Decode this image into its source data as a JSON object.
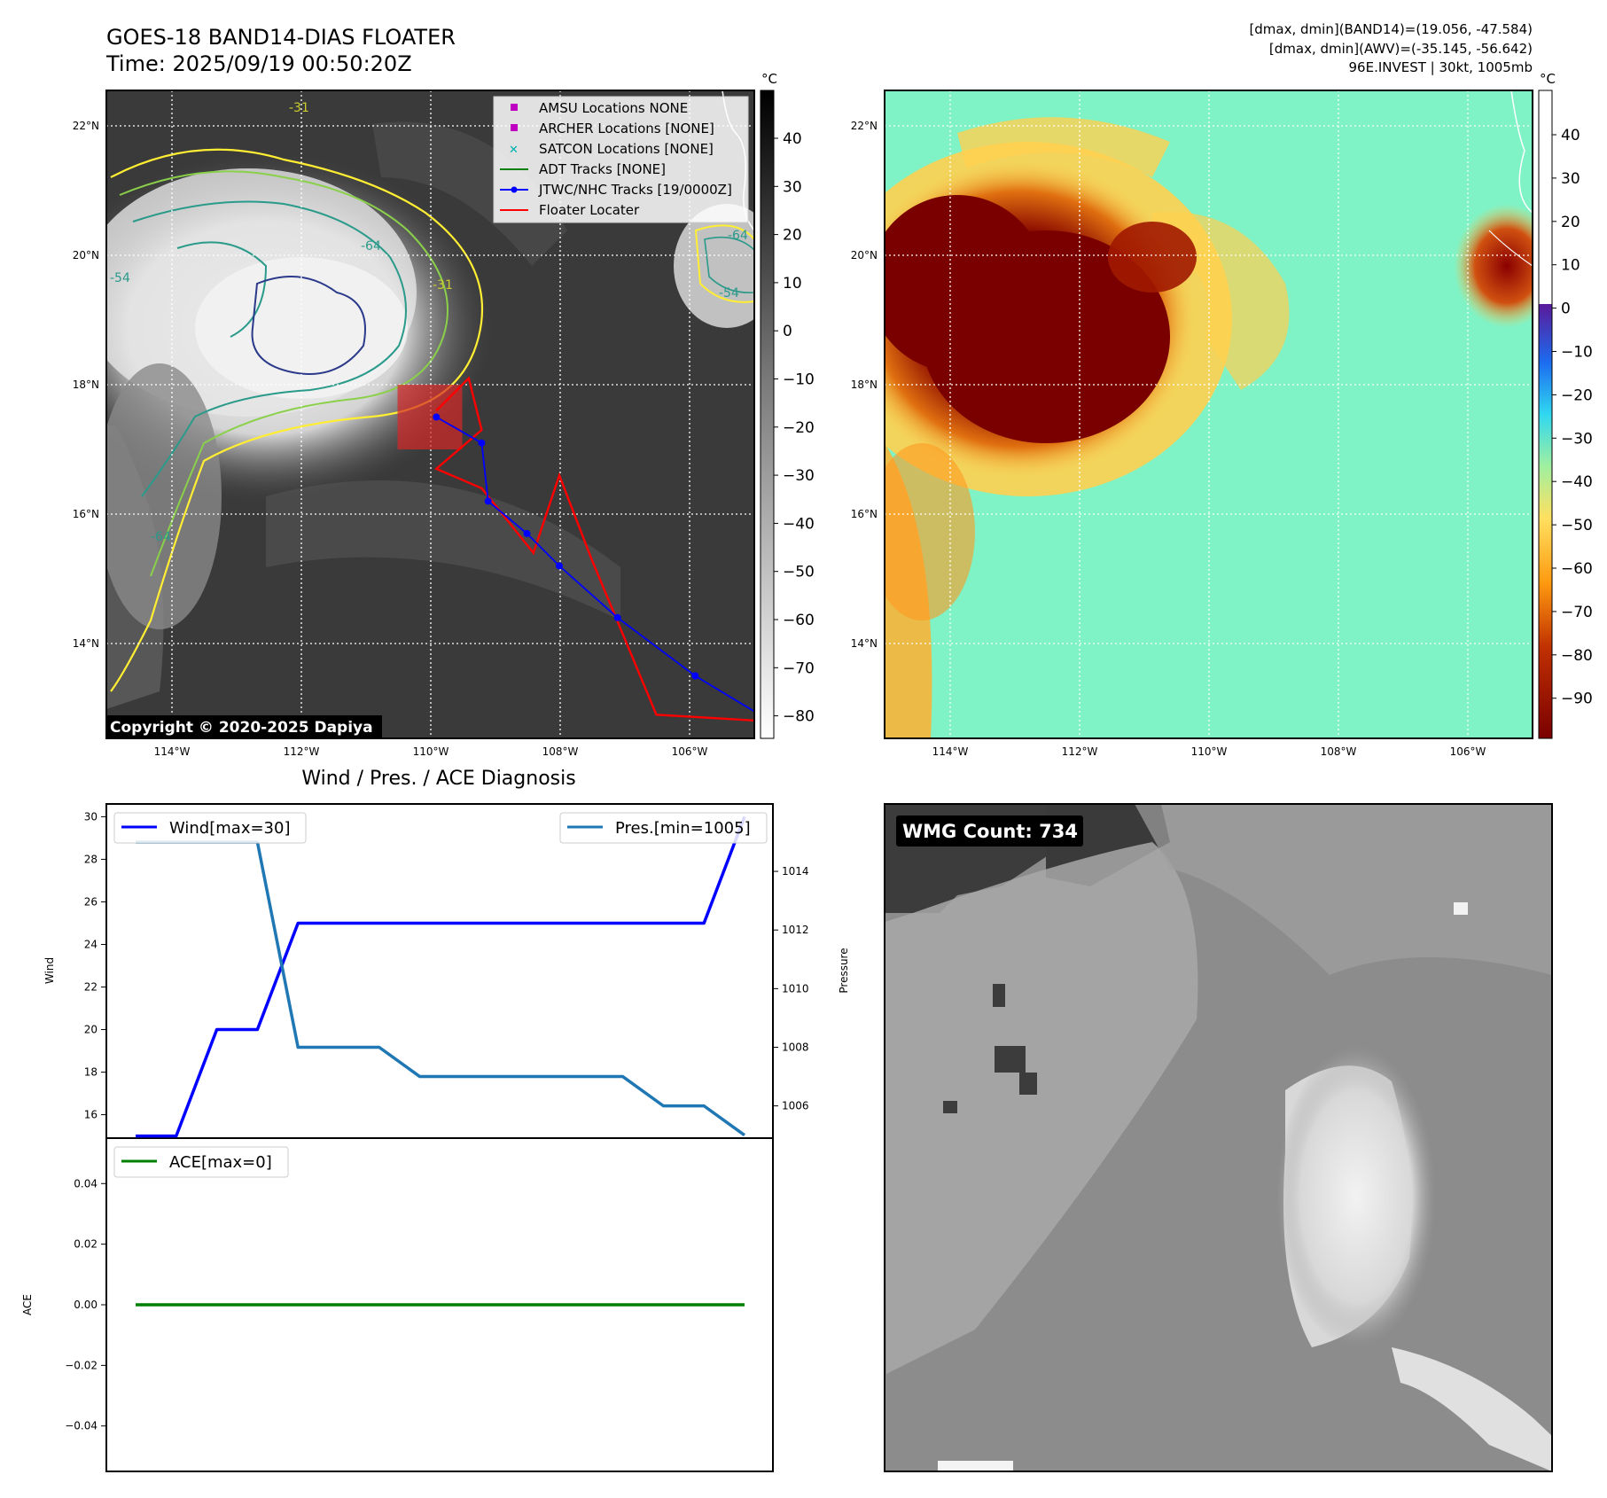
{
  "header": {
    "title": "GOES-18 BAND14-DIAS FLOATER",
    "time": "Time: 2025/09/19 00:50:20Z",
    "info_band14": "[dmax, dmin](BAND14)=(19.056, -47.584)",
    "info_awv": "[dmax, dmin](AWV)=(-35.145, -56.642)",
    "info_storm": "96E.INVEST | 30kt, 1005mb"
  },
  "ir_map": {
    "lat_labels": [
      "22°N",
      "20°N",
      "18°N",
      "16°N",
      "14°N"
    ],
    "lon_labels": [
      "114°W",
      "112°W",
      "110°W",
      "108°W",
      "106°W"
    ],
    "contour_labels": [
      "-31",
      "-54",
      "-64",
      "-31",
      "-64",
      "-54",
      "-64"
    ],
    "copyright": "Copyright © 2020-2025 Dapiya",
    "legend": [
      {
        "label": "AMSU Locations NONE",
        "symbol": "square",
        "color": "#c000c0"
      },
      {
        "label": "ARCHER Locations [NONE]",
        "symbol": "square",
        "color": "#c000c0"
      },
      {
        "label": "SATCON Locations [NONE]",
        "symbol": "x",
        "color": "#00b0b0"
      },
      {
        "label": "ADT Tracks [NONE]",
        "symbol": "line",
        "color": "#008000"
      },
      {
        "label": "JTWC/NHC Tracks [19/0000Z]",
        "symbol": "line-dot",
        "color": "#0000ff"
      },
      {
        "label": "Floater Locater",
        "symbol": "line",
        "color": "#ff0000"
      }
    ],
    "track_jtwc": [
      [
        -109.9,
        17.5
      ],
      [
        -109.2,
        17.1
      ],
      [
        -109.1,
        16.2
      ],
      [
        -108.5,
        15.7
      ],
      [
        -108.0,
        15.2
      ],
      [
        -107.1,
        14.4
      ],
      [
        -105.9,
        13.5
      ],
      [
        -104.9,
        12.9
      ]
    ],
    "floater_locater": [
      [
        -109.9,
        17.6
      ],
      [
        -109.4,
        18.1
      ],
      [
        -109.2,
        17.3
      ],
      [
        -109.9,
        16.7
      ],
      [
        -109.2,
        16.4
      ],
      [
        -108.4,
        15.4
      ],
      [
        -108.0,
        16.6
      ],
      [
        -107.5,
        15.3
      ],
      [
        -106.5,
        12.9
      ],
      [
        -104.8,
        12.8
      ]
    ],
    "floater_box": {
      "lon": [
        -110.5,
        -109.5
      ],
      "lat": [
        17.0,
        18.0
      ]
    },
    "colorbar": {
      "unit": "°C",
      "ticks": [
        "40",
        "30",
        "20",
        "10",
        "0",
        "−10",
        "−20",
        "−30",
        "−40",
        "−50",
        "−60",
        "−70",
        "−80"
      ]
    }
  },
  "awv_map": {
    "lat_labels": [
      "22°N",
      "20°N",
      "18°N",
      "16°N",
      "14°N"
    ],
    "lon_labels": [
      "114°W",
      "112°W",
      "110°W",
      "108°W",
      "106°W"
    ],
    "colorbar": {
      "unit": "°C",
      "ticks": [
        "40",
        "30",
        "20",
        "10",
        "0",
        "−10",
        "−20",
        "−30",
        "−40",
        "−50",
        "−60",
        "−70",
        "−80",
        "−90"
      ]
    }
  },
  "diagnosis": {
    "title": "Wind / Pres. / ACE Diagnosis",
    "wind_ylabel": "Wind",
    "pressure_ylabel": "Pressure",
    "ace_ylabel": "ACE",
    "wind_legend": "Wind[max=30]",
    "pres_legend": "Pres.[min=1005]",
    "ace_legend": "ACE[max=0]",
    "wind_ticks": [
      "30",
      "28",
      "26",
      "24",
      "22",
      "20",
      "18",
      "16"
    ],
    "pres_ticks": [
      "1014",
      "1012",
      "1010",
      "1008",
      "1006"
    ],
    "ace_ticks": [
      "0.04",
      "0.02",
      "0.00",
      "−0.02",
      "−0.04"
    ]
  },
  "wmg": {
    "count_label": "WMG Count: 734"
  },
  "chart_data": [
    {
      "type": "line",
      "title": "Wind / Pres. / ACE Diagnosis",
      "ylabel": "Wind",
      "ylim": [
        14.9,
        30.6
      ],
      "x": [
        0,
        1,
        2,
        3,
        4,
        5,
        6,
        7,
        8,
        9,
        10,
        11,
        12,
        13,
        14,
        15
      ],
      "series": [
        {
          "name": "Wind[max=30]",
          "values": [
            15,
            15,
            20,
            20,
            25,
            25,
            25,
            25,
            25,
            25,
            25,
            25,
            25,
            25,
            25,
            30
          ],
          "color": "#0000ff"
        }
      ]
    },
    {
      "type": "line",
      "ylabel": "Pressure",
      "ylim": [
        1004.9,
        1016.3
      ],
      "x": [
        0,
        1,
        2,
        3,
        4,
        5,
        6,
        7,
        8,
        9,
        10,
        11,
        12,
        13,
        14,
        15
      ],
      "series": [
        {
          "name": "Pres.[min=1005]",
          "values": [
            1015,
            1015,
            1015,
            1015,
            1008,
            1008,
            1008,
            1007,
            1007,
            1007,
            1007,
            1007,
            1007,
            1006,
            1006,
            1005
          ],
          "color": "#1f77b4"
        }
      ]
    },
    {
      "type": "line",
      "ylabel": "ACE",
      "ylim": [
        -0.055,
        0.055
      ],
      "x": [
        0,
        1,
        2,
        3,
        4,
        5,
        6,
        7,
        8,
        9,
        10,
        11,
        12,
        13,
        14,
        15
      ],
      "series": [
        {
          "name": "ACE[max=0]",
          "values": [
            0,
            0,
            0,
            0,
            0,
            0,
            0,
            0,
            0,
            0,
            0,
            0,
            0,
            0,
            0,
            0
          ],
          "color": "#008000"
        }
      ]
    }
  ]
}
